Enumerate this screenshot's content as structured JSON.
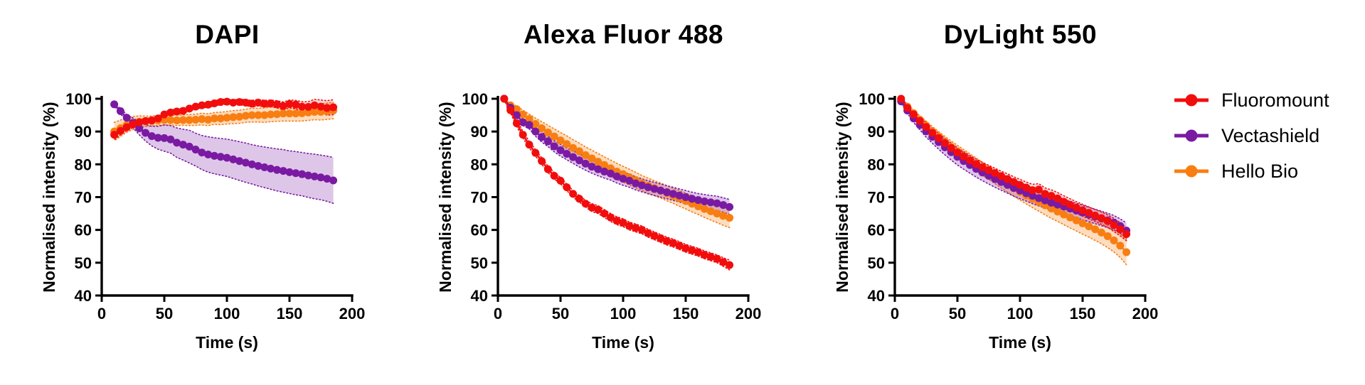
{
  "figure": {
    "background": "#ffffff"
  },
  "legend": {
    "position": "right",
    "items": [
      {
        "label": "Fluoromount",
        "color": "#f20d0d"
      },
      {
        "label": "Vectashield",
        "color": "#7a1aa3"
      },
      {
        "label": "Hello Bio",
        "color": "#f87e11"
      }
    ]
  },
  "chart_data": [
    {
      "type": "line",
      "title": "DAPI",
      "xlabel": "Time (s)",
      "ylabel": "Normalised intensity (%)",
      "xlim": [
        0,
        200
      ],
      "ylim": [
        40,
        100
      ],
      "xticks": [
        0,
        50,
        100,
        150,
        200
      ],
      "yticks": [
        40,
        50,
        60,
        70,
        80,
        90,
        100
      ],
      "grid": false,
      "x": [
        10,
        15,
        20,
        25,
        30,
        35,
        40,
        45,
        50,
        55,
        60,
        65,
        70,
        75,
        80,
        85,
        90,
        95,
        100,
        105,
        110,
        115,
        120,
        125,
        130,
        135,
        140,
        145,
        150,
        155,
        160,
        165,
        170,
        175,
        180,
        185
      ],
      "series": [
        {
          "name": "Fluoromount",
          "color": "#f20d0d",
          "band_color": "rgba(242,13,13,0.16)",
          "values": [
            89,
            90.2,
            91.3,
            92.2,
            92.8,
            93.2,
            93.4,
            94,
            95.2,
            95.8,
            96.1,
            96.3,
            97,
            97.6,
            98,
            98.2,
            98.6,
            99,
            99.1,
            98.8,
            99,
            98.8,
            98.5,
            98.8,
            98.5,
            98.6,
            98.3,
            97.8,
            98.4,
            98.2,
            97.6,
            97.5,
            98,
            97.6,
            97.2,
            97.4
          ],
          "error": [
            1.5,
            1.2,
            1,
            1,
            0.8,
            0.8,
            0.8,
            0.8,
            0.8,
            0.8,
            0.8,
            0.8,
            0.8,
            0.8,
            0.8,
            0.8,
            0.8,
            0.8,
            0.8,
            0.8,
            0.9,
            0.9,
            1,
            1,
            1,
            1,
            1.1,
            1.2,
            1.2,
            1.3,
            1.5,
            1.6,
            1.8,
            2,
            2.2,
            2.3
          ]
        },
        {
          "name": "Vectashield",
          "color": "#7a1aa3",
          "band_color": "rgba(122,26,163,0.25)",
          "values": [
            98.3,
            96.2,
            94.2,
            92.6,
            91,
            89.6,
            88.6,
            88.1,
            88,
            87.6,
            86.6,
            86,
            85.4,
            84.5,
            83.6,
            83,
            82.6,
            82.3,
            82,
            81.5,
            81,
            80.5,
            80,
            79.5,
            79.1,
            78.7,
            78.3,
            78,
            77.6,
            77.3,
            77,
            76.6,
            76.3,
            76,
            75.6,
            75.1
          ],
          "error": [
            0.5,
            0.8,
            1,
            1.5,
            2,
            2.5,
            3,
            3.5,
            4,
            4.2,
            4.5,
            4.7,
            5,
            5,
            5.2,
            5.4,
            5.5,
            5.6,
            5.7,
            5.8,
            5.9,
            6,
            6,
            6.1,
            6.2,
            6.3,
            6.4,
            6.5,
            6.5,
            6.6,
            6.6,
            6.7,
            6.8,
            6.8,
            6.9,
            7
          ]
        },
        {
          "name": "Hello Bio",
          "color": "#f87e11",
          "band_color": "rgba(248,126,17,0.27)",
          "values": [
            90,
            91,
            92,
            92.6,
            93,
            93.1,
            93.2,
            93.4,
            93.5,
            93.5,
            93.4,
            93.5,
            93.5,
            93.6,
            93.8,
            93.6,
            94,
            94,
            94.2,
            94.4,
            94.5,
            94.8,
            95,
            95,
            95,
            95.2,
            95.3,
            95.5,
            95.5,
            95.5,
            95.6,
            95.8,
            96,
            96,
            96.2,
            96.4
          ],
          "error": [
            2.8,
            2.5,
            2.2,
            2,
            1.8,
            1.6,
            1.5,
            1.5,
            1.5,
            1.5,
            1.6,
            1.6,
            1.7,
            1.7,
            1.8,
            1.8,
            1.8,
            1.9,
            1.9,
            2,
            2,
            2,
            2.1,
            2.1,
            2.2,
            2.2,
            2.2,
            2.3,
            2.3,
            2.3,
            2.4,
            2.4,
            2.4,
            2.5,
            2.5,
            2.5
          ]
        }
      ]
    },
    {
      "type": "line",
      "title": "Alexa Fluor 488",
      "xlabel": "Time (s)",
      "ylabel": "Normalised intensity (%)",
      "xlim": [
        0,
        200
      ],
      "ylim": [
        40,
        100
      ],
      "xticks": [
        0,
        50,
        100,
        150,
        200
      ],
      "yticks": [
        40,
        50,
        60,
        70,
        80,
        90,
        100
      ],
      "grid": false,
      "x": [
        5,
        10,
        15,
        20,
        25,
        30,
        35,
        40,
        45,
        50,
        55,
        60,
        65,
        70,
        75,
        80,
        85,
        90,
        95,
        100,
        105,
        110,
        115,
        120,
        125,
        130,
        135,
        140,
        145,
        150,
        155,
        160,
        165,
        170,
        175,
        180,
        185
      ],
      "series": [
        {
          "name": "Fluoromount",
          "color": "#f20d0d",
          "band_color": "rgba(242,13,13,0.16)",
          "values": [
            100,
            96.5,
            92.5,
            89,
            86,
            83.5,
            81,
            78.5,
            76.5,
            75,
            73,
            71,
            69.5,
            68,
            66.8,
            66.2,
            65,
            63.8,
            62.8,
            62.2,
            61.2,
            60.6,
            60,
            59,
            58.2,
            57.4,
            56.6,
            56,
            55.2,
            54.4,
            53.8,
            53.2,
            52.4,
            51.8,
            51.2,
            50.2,
            49.3
          ],
          "error": [
            0.5,
            0.8,
            1,
            1,
            1,
            1,
            1,
            1,
            1,
            1,
            1,
            1,
            1,
            1,
            1.2,
            1.2,
            1.2,
            1.2,
            1.2,
            1.2,
            1.2,
            1.2,
            1.2,
            1.2,
            1.2,
            1.2,
            1.2,
            1.2,
            1.2,
            1.2,
            1.2,
            1.2,
            1.2,
            1.2,
            1.2,
            1.3,
            1.5
          ]
        },
        {
          "name": "Vectashield",
          "color": "#7a1aa3",
          "band_color": "rgba(122,26,163,0.25)",
          "values": [
            100,
            97.3,
            95,
            92.8,
            92,
            90,
            88.3,
            87,
            85.5,
            84.3,
            83.2,
            82.2,
            81.2,
            80.2,
            79.3,
            78.5,
            77.8,
            77.2,
            76.3,
            75.6,
            75,
            74.2,
            73.6,
            73,
            72.5,
            72,
            71.5,
            71,
            70.5,
            70,
            69.5,
            69.1,
            68.7,
            68.4,
            68.1,
            67.6,
            67
          ],
          "error": [
            0.3,
            0.5,
            0.8,
            1,
            1.2,
            1.4,
            1.5,
            1.6,
            1.7,
            1.8,
            1.8,
            1.9,
            2,
            2,
            2,
            2,
            2,
            2,
            2,
            2,
            2,
            2,
            2,
            2,
            2,
            2,
            2,
            2,
            2,
            2,
            2,
            2,
            2.1,
            2.1,
            2.2,
            2.2,
            2.3
          ]
        },
        {
          "name": "Hello Bio",
          "color": "#f87e11",
          "band_color": "rgba(248,126,17,0.27)",
          "values": [
            100,
            98,
            96.8,
            95.2,
            93.8,
            92.3,
            91,
            89.7,
            88.5,
            87.3,
            86.2,
            85,
            84,
            82.8,
            81.8,
            80.8,
            79.8,
            78.8,
            77.8,
            77,
            76.1,
            75.2,
            74.3,
            73.5,
            72.7,
            72,
            71.2,
            70.4,
            69.6,
            68.8,
            68,
            67.2,
            66.4,
            65.7,
            65,
            64.3,
            63.7
          ],
          "error": [
            0.3,
            0.6,
            1,
            1.3,
            1.5,
            1.8,
            2,
            2.2,
            2.3,
            2.4,
            2.5,
            2.5,
            2.5,
            2.5,
            2.5,
            2.5,
            2.5,
            2.5,
            2.5,
            2.4,
            2.4,
            2.4,
            2.3,
            2.3,
            2.3,
            2.3,
            2.3,
            2.3,
            2.4,
            2.4,
            2.5,
            2.5,
            2.6,
            2.7,
            2.8,
            2.9,
            3
          ]
        }
      ]
    },
    {
      "type": "line",
      "title": "DyLight 550",
      "xlabel": "Time (s)",
      "ylabel": "Normalised intensity (%)",
      "xlim": [
        0,
        200
      ],
      "ylim": [
        40,
        100
      ],
      "xticks": [
        0,
        50,
        100,
        150,
        200
      ],
      "yticks": [
        40,
        50,
        60,
        70,
        80,
        90,
        100
      ],
      "grid": false,
      "x": [
        5,
        10,
        15,
        20,
        25,
        30,
        35,
        40,
        45,
        50,
        55,
        60,
        65,
        70,
        75,
        80,
        85,
        90,
        95,
        100,
        105,
        110,
        115,
        120,
        125,
        130,
        135,
        140,
        145,
        150,
        155,
        160,
        165,
        170,
        175,
        180,
        185
      ],
      "series": [
        {
          "name": "Fluoromount",
          "color": "#f20d0d",
          "band_color": "rgba(242,13,13,0.16)",
          "values": [
            100,
            97.2,
            95.2,
            93.2,
            91.4,
            89.6,
            88,
            86.5,
            85,
            83.6,
            82.4,
            81.2,
            80.1,
            79.1,
            78.2,
            77.3,
            76.4,
            75.5,
            74.6,
            73.7,
            72.9,
            72.1,
            72.3,
            71,
            70.4,
            69.6,
            68.6,
            67.7,
            66.8,
            66,
            65.2,
            64.4,
            63.6,
            62.7,
            61.5,
            60.2,
            58.7
          ],
          "error": [
            0.5,
            0.8,
            1,
            1.2,
            1.3,
            1.4,
            1.5,
            1.5,
            1.5,
            1.5,
            1.5,
            1.5,
            1.5,
            1.5,
            1.5,
            1.5,
            1.5,
            1.6,
            1.6,
            1.7,
            1.7,
            1.8,
            1.8,
            1.8,
            1.8,
            1.8,
            1.8,
            1.8,
            1.8,
            1.8,
            1.8,
            1.8,
            1.9,
            1.9,
            2,
            2,
            2
          ]
        },
        {
          "name": "Vectashield",
          "color": "#7a1aa3",
          "band_color": "rgba(122,26,163,0.25)",
          "values": [
            99.2,
            96.4,
            94,
            92,
            90.1,
            88.4,
            86.8,
            85.2,
            83.7,
            82.3,
            81,
            79.8,
            78.6,
            77.5,
            76.5,
            75.5,
            74.6,
            73.7,
            72.8,
            72,
            71.2,
            70.4,
            69.7,
            69,
            68.3,
            67.7,
            67.1,
            66.5,
            65.9,
            65.3,
            64.7,
            64.1,
            63.5,
            62.9,
            62.2,
            61.2,
            59.8
          ],
          "error": [
            0.5,
            0.8,
            1.2,
            1.5,
            1.8,
            2,
            2.2,
            2.3,
            2.4,
            2.5,
            2.5,
            2.5,
            2.5,
            2.5,
            2.5,
            2.5,
            2.5,
            2.5,
            2.5,
            2.5,
            2.4,
            2.4,
            2.4,
            2.3,
            2.3,
            2.3,
            2.3,
            2.2,
            2.2,
            2.2,
            2.2,
            2.2,
            2.2,
            2.2,
            2.2,
            2.2,
            2.3
          ]
        },
        {
          "name": "Hello Bio",
          "color": "#f87e11",
          "band_color": "rgba(248,126,17,0.27)",
          "values": [
            99.6,
            97.6,
            95.6,
            93.6,
            91.8,
            90,
            88.4,
            86.8,
            85.3,
            83.9,
            82.5,
            81.2,
            79.9,
            78.6,
            77.4,
            76.2,
            75,
            73.8,
            72.7,
            71.6,
            70.5,
            69.5,
            68.5,
            67.5,
            66.5,
            65.6,
            64.7,
            63.8,
            62.9,
            62,
            61.1,
            60.2,
            59.2,
            58.1,
            56.8,
            55.2,
            53.2
          ],
          "error": [
            0.5,
            0.8,
            1,
            1.2,
            1.4,
            1.5,
            1.6,
            1.7,
            1.8,
            1.9,
            2,
            2,
            2,
            2,
            2,
            2.1,
            2.2,
            2.3,
            2.4,
            2.5,
            2.6,
            2.7,
            2.8,
            2.9,
            3,
            3,
            3.1,
            3.2,
            3.2,
            3.3,
            3.3,
            3.4,
            3.4,
            3.5,
            3.5,
            3.6,
            3.8
          ]
        }
      ]
    }
  ]
}
